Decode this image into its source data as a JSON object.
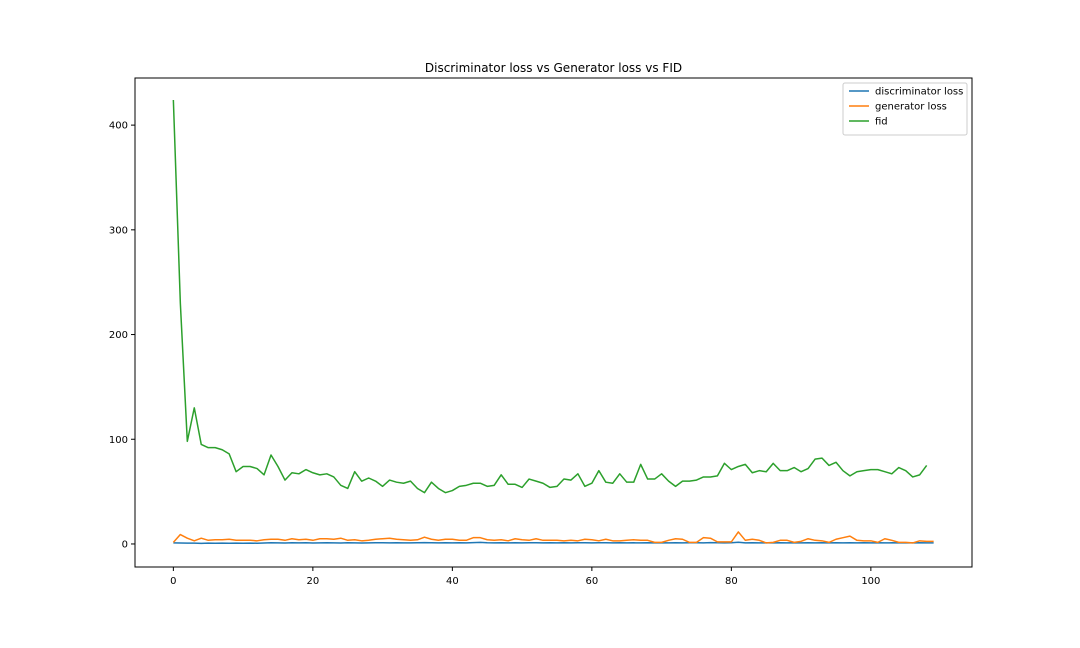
{
  "chart_data": {
    "type": "line",
    "title": "Discriminator loss vs Generator loss vs FID",
    "xlabel": "",
    "ylabel": "",
    "xlim": [
      -5.5,
      114.5
    ],
    "ylim": [
      -22,
      445
    ],
    "x_ticks": [
      0,
      20,
      40,
      60,
      80,
      100
    ],
    "y_ticks": [
      0,
      100,
      200,
      300,
      400
    ],
    "grid": false,
    "legend_position": "top-right",
    "series": [
      {
        "name": "discriminator loss",
        "color": "#1f77b4",
        "x_start": 0,
        "values": [
          1.0,
          0.9,
          0.8,
          0.8,
          0.6,
          0.8,
          0.7,
          0.8,
          0.7,
          0.8,
          0.7,
          0.8,
          0.7,
          0.9,
          1.2,
          1.0,
          0.9,
          1.2,
          1.0,
          1.1,
          0.9,
          1.0,
          1.1,
          1.0,
          0.9,
          1.1,
          1.0,
          0.9,
          1.0,
          1.1,
          1.2,
          1.0,
          1.1,
          1.0,
          1.0,
          1.2,
          1.3,
          1.1,
          1.0,
          1.2,
          1.0,
          1.1,
          1.0,
          1.3,
          1.5,
          1.1,
          1.0,
          1.2,
          1.0,
          1.1,
          1.0,
          1.2,
          1.1,
          1.0,
          1.1,
          1.0,
          1.1,
          1.0,
          1.2,
          1.1,
          1.0,
          1.2,
          1.1,
          1.0,
          1.1,
          1.0,
          1.1,
          1.0,
          1.1,
          1.0,
          1.1,
          1.0,
          1.1,
          1.0,
          1.2,
          1.1,
          1.0,
          1.3,
          1.1,
          1.0,
          1.1,
          1.6,
          1.0,
          1.1,
          1.0,
          1.1,
          1.0,
          1.1,
          1.0,
          1.1,
          1.0,
          1.1,
          1.0,
          1.1,
          1.0,
          1.1,
          1.0,
          1.1,
          1.0,
          1.1,
          1.0,
          1.1,
          1.0,
          1.1,
          1.0,
          1.1,
          1.0,
          1.1,
          1.0,
          1.0
        ]
      },
      {
        "name": "generator loss",
        "color": "#ff7f0e",
        "x_start": 0,
        "values": [
          1.5,
          9.0,
          5.5,
          3.0,
          5.5,
          3.5,
          4.0,
          4.0,
          4.5,
          3.5,
          3.5,
          3.5,
          3.0,
          4.0,
          4.5,
          4.5,
          3.5,
          5.0,
          4.0,
          4.5,
          3.5,
          5.0,
          5.0,
          4.5,
          5.5,
          3.5,
          4.0,
          3.0,
          3.5,
          4.5,
          5.0,
          5.5,
          4.5,
          4.0,
          3.5,
          4.0,
          6.5,
          4.5,
          3.5,
          4.5,
          4.5,
          3.5,
          3.5,
          6.0,
          6.0,
          4.0,
          3.5,
          4.0,
          3.0,
          5.0,
          4.0,
          3.5,
          5.0,
          3.5,
          3.5,
          3.5,
          3.0,
          3.5,
          3.0,
          4.5,
          4.0,
          3.0,
          4.5,
          3.0,
          3.0,
          3.5,
          4.0,
          3.5,
          3.5,
          1.5,
          1.5,
          3.5,
          5.0,
          4.5,
          1.5,
          1.5,
          6.0,
          5.5,
          2.0,
          2.0,
          2.0,
          11.5,
          3.5,
          4.5,
          3.5,
          1.0,
          1.5,
          3.5,
          3.5,
          1.5,
          2.5,
          5.0,
          3.5,
          3.0,
          1.5,
          4.5,
          6.0,
          7.5,
          3.5,
          3.0,
          3.0,
          1.5,
          5.0,
          3.5,
          1.5,
          1.5,
          1.0,
          3.0,
          2.5,
          2.5
        ]
      },
      {
        "name": "fid",
        "color": "#2ca02c",
        "x_start": 0,
        "values": [
          424,
          230,
          98,
          130,
          95,
          92,
          92,
          90,
          86,
          69,
          74,
          74,
          72,
          66,
          85,
          74,
          61,
          68,
          67,
          71,
          68,
          66,
          67,
          64,
          56,
          53,
          69,
          60,
          63,
          60,
          55,
          61,
          59,
          58,
          60,
          53,
          49,
          59,
          53,
          49,
          51,
          55,
          56,
          58,
          58,
          55,
          56,
          66,
          57,
          57,
          54,
          62,
          60,
          58,
          54,
          55,
          62,
          61,
          67,
          55,
          58,
          70,
          59,
          58,
          67,
          59,
          59,
          76,
          62,
          62,
          67,
          60,
          55,
          60,
          60,
          61,
          64,
          64,
          65,
          77,
          71,
          74,
          76,
          68,
          70,
          69,
          77,
          70,
          70,
          73,
          69,
          72,
          81,
          82,
          75,
          78,
          70,
          65,
          69,
          70,
          71,
          71,
          69,
          67,
          73,
          70,
          64,
          66,
          75
        ]
      }
    ]
  }
}
